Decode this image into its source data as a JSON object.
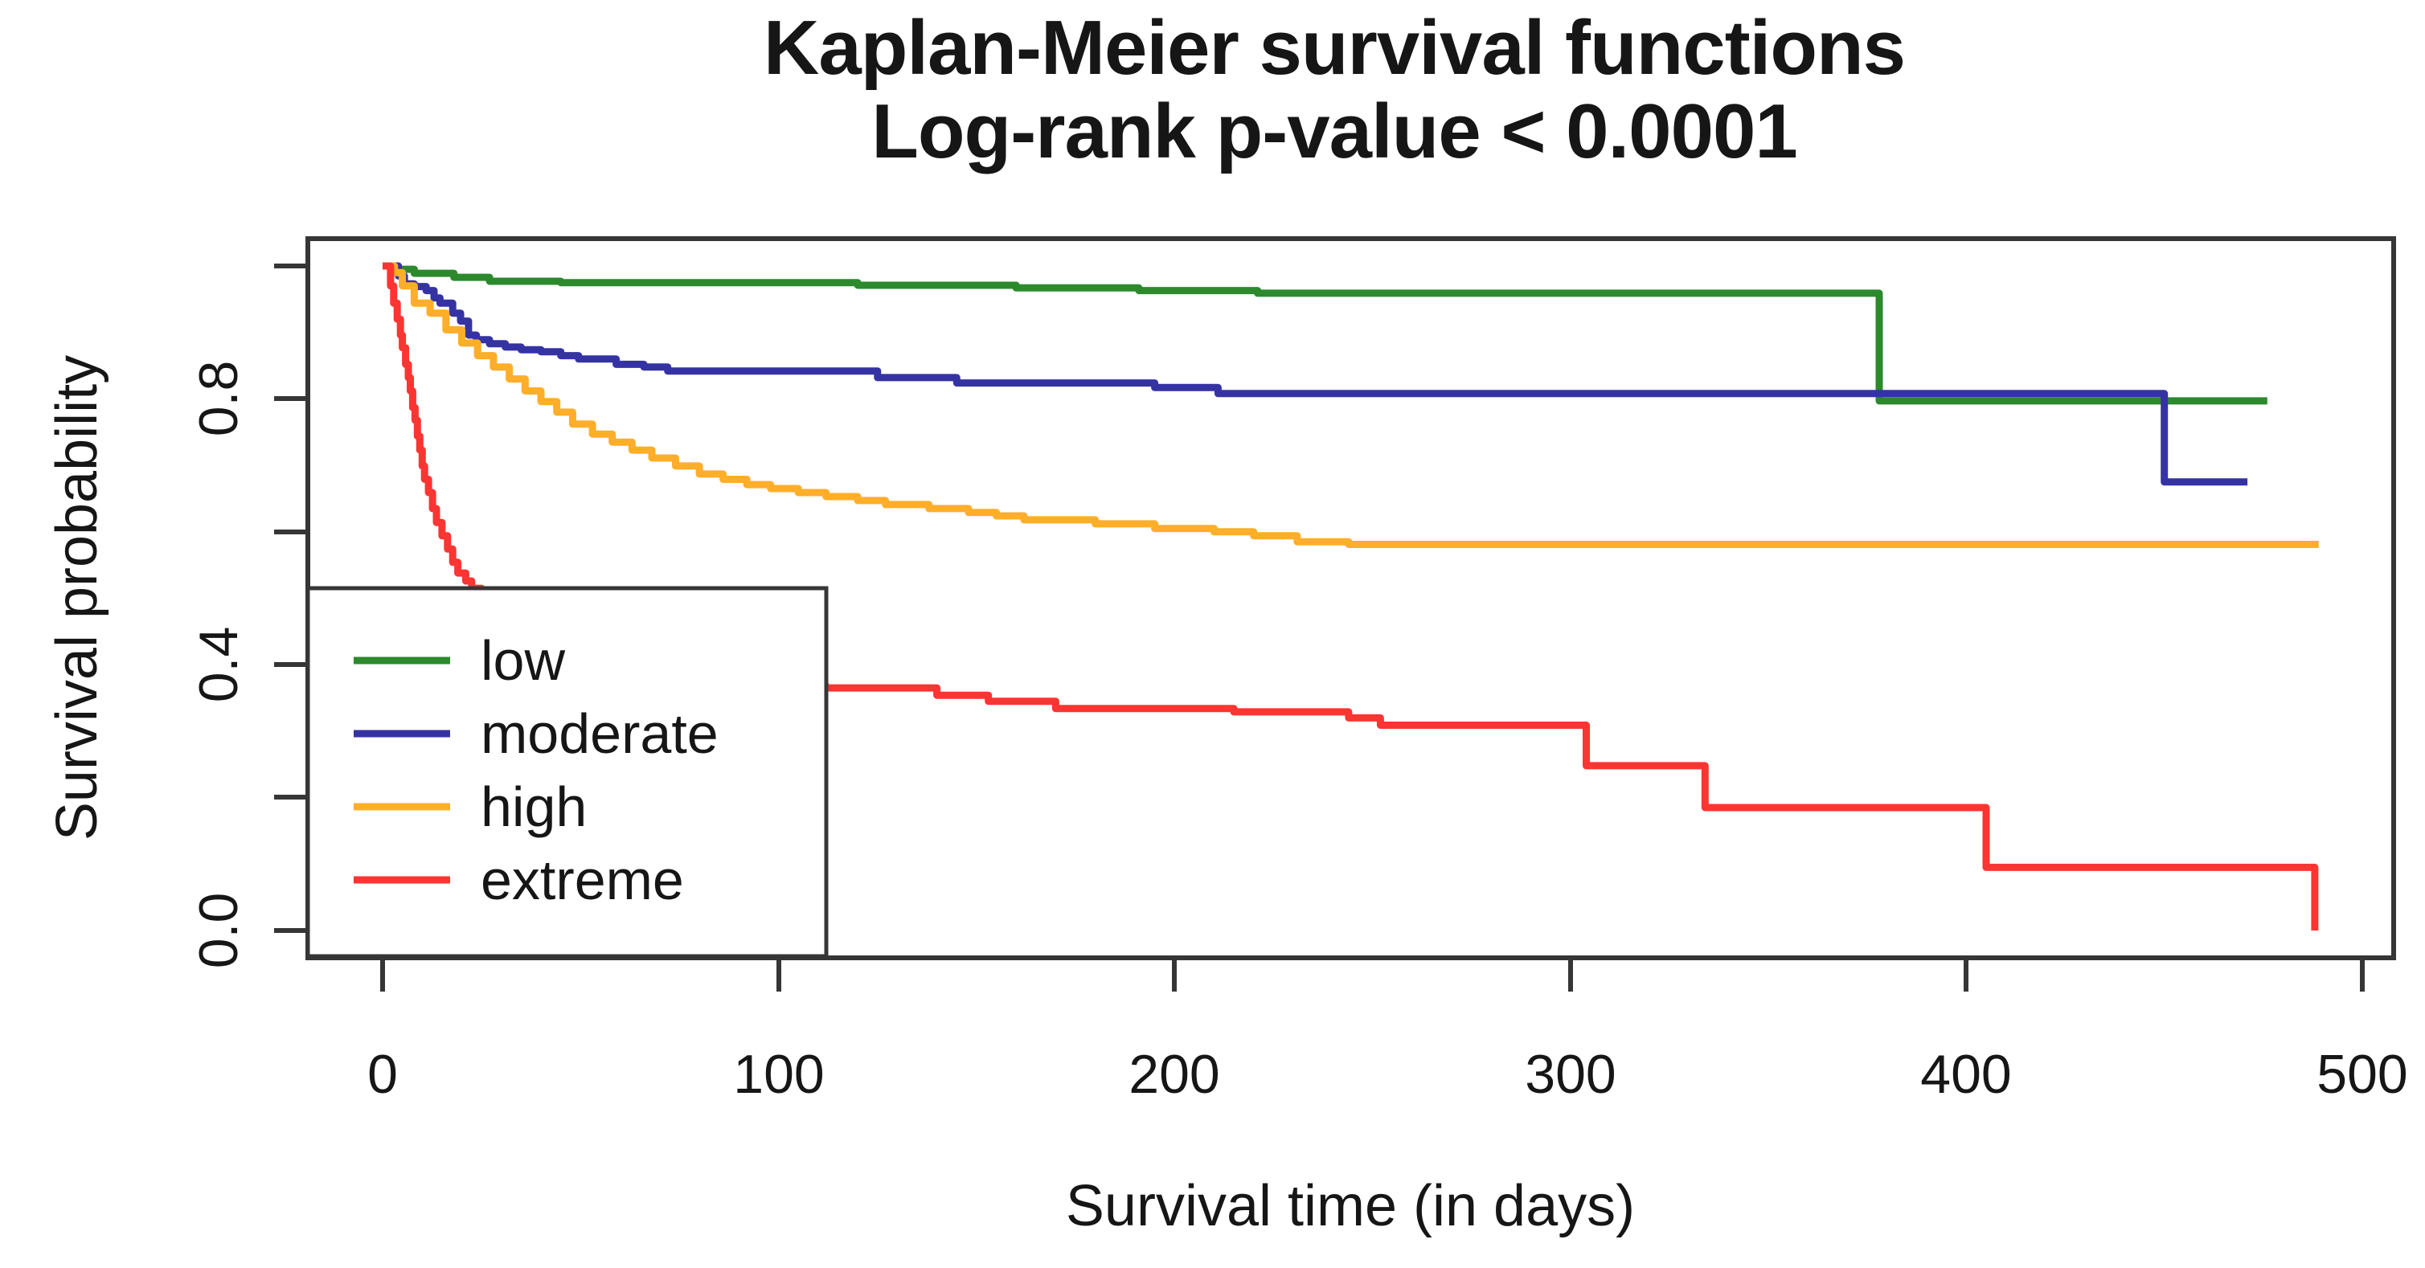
{
  "title": {
    "line1": "Kaplan-Meier survival functions",
    "line2": "Log-rank p-value < 0.0001"
  },
  "chart_data": {
    "type": "line",
    "subtype": "kaplan-meier-step",
    "title": "Kaplan-Meier survival functions",
    "subtitle": "Log-rank p-value < 0.0001",
    "xlabel": "Survival time (in days)",
    "ylabel": "Survival probability",
    "xlim": [
      0,
      500
    ],
    "ylim": [
      0,
      1
    ],
    "grid": false,
    "xaxis": {
      "ticks": [
        0,
        100,
        200,
        300,
        400,
        500
      ],
      "tick_labels": [
        "0",
        "100",
        "200",
        "300",
        "400",
        "500"
      ]
    },
    "yaxis": {
      "ticks": [
        0.0,
        0.2,
        0.4,
        0.6,
        0.8,
        1.0
      ],
      "shown_labels": [
        "0.8",
        "0.4",
        "0.0"
      ],
      "shown_label_values": [
        0.8,
        0.4,
        0.0
      ]
    },
    "legend": {
      "position": "bottom-left",
      "entries": [
        {
          "label": "low",
          "color": "#2C8A2C"
        },
        {
          "label": "moderate",
          "color": "#3533A3"
        },
        {
          "label": "high",
          "color": "#FFAE2A"
        },
        {
          "label": "extreme",
          "color": "#FB3532"
        }
      ]
    },
    "series": [
      {
        "name": "low",
        "color": "#2C8A2C",
        "points": [
          [
            0,
            1.0
          ],
          [
            3,
            0.995
          ],
          [
            8,
            0.989
          ],
          [
            18,
            0.983
          ],
          [
            27,
            0.977
          ],
          [
            45,
            0.975
          ],
          [
            120,
            0.971
          ],
          [
            160,
            0.967
          ],
          [
            191,
            0.963
          ],
          [
            221,
            0.959
          ],
          [
            378,
            0.797
          ],
          [
            476,
            0.797
          ]
        ]
      },
      {
        "name": "moderate",
        "color": "#3533A3",
        "points": [
          [
            0,
            1.0
          ],
          [
            4,
            0.985
          ],
          [
            5.5,
            0.973
          ],
          [
            8,
            0.969
          ],
          [
            11,
            0.963
          ],
          [
            13,
            0.952
          ],
          [
            14.5,
            0.944
          ],
          [
            17.7,
            0.929
          ],
          [
            19.7,
            0.917
          ],
          [
            21.7,
            0.896
          ],
          [
            23.7,
            0.889
          ],
          [
            27,
            0.883
          ],
          [
            31,
            0.878
          ],
          [
            35,
            0.874
          ],
          [
            40,
            0.871
          ],
          [
            45,
            0.865
          ],
          [
            49.5,
            0.86
          ],
          [
            59,
            0.852
          ],
          [
            66,
            0.848
          ],
          [
            72,
            0.842
          ],
          [
            125,
            0.832
          ],
          [
            145,
            0.824
          ],
          [
            195,
            0.817
          ],
          [
            211,
            0.808
          ],
          [
            450,
            0.675
          ],
          [
            471,
            0.675
          ]
        ]
      },
      {
        "name": "high",
        "color": "#FFAE2A",
        "points": [
          [
            0,
            1.0
          ],
          [
            3,
            0.99
          ],
          [
            5,
            0.97
          ],
          [
            8,
            0.944
          ],
          [
            12,
            0.929
          ],
          [
            16,
            0.904
          ],
          [
            20,
            0.884
          ],
          [
            24,
            0.865
          ],
          [
            28,
            0.848
          ],
          [
            32,
            0.83
          ],
          [
            36,
            0.812
          ],
          [
            40,
            0.796
          ],
          [
            44,
            0.78
          ],
          [
            48,
            0.762
          ],
          [
            53,
            0.747
          ],
          [
            58,
            0.735
          ],
          [
            63,
            0.723
          ],
          [
            68,
            0.711
          ],
          [
            74,
            0.699
          ],
          [
            80,
            0.687
          ],
          [
            86,
            0.679
          ],
          [
            92,
            0.671
          ],
          [
            98,
            0.665
          ],
          [
            105,
            0.659
          ],
          [
            112,
            0.653
          ],
          [
            120,
            0.647
          ],
          [
            127,
            0.641
          ],
          [
            138,
            0.635
          ],
          [
            148,
            0.629
          ],
          [
            155,
            0.624
          ],
          [
            162,
            0.618
          ],
          [
            180,
            0.612
          ],
          [
            195,
            0.605
          ],
          [
            210,
            0.6
          ],
          [
            220,
            0.594
          ],
          [
            231,
            0.585
          ],
          [
            244,
            0.581
          ],
          [
            489,
            0.581
          ]
        ]
      },
      {
        "name": "extreme",
        "color": "#FB3532",
        "points": [
          [
            0,
            1.0
          ],
          [
            2,
            0.97
          ],
          [
            2.8,
            0.944
          ],
          [
            3.7,
            0.92
          ],
          [
            4.5,
            0.896
          ],
          [
            5,
            0.877
          ],
          [
            5.8,
            0.852
          ],
          [
            6.5,
            0.832
          ],
          [
            7,
            0.812
          ],
          [
            7.6,
            0.787
          ],
          [
            8.2,
            0.768
          ],
          [
            8.8,
            0.744
          ],
          [
            9.4,
            0.723
          ],
          [
            10,
            0.699
          ],
          [
            10.6,
            0.679
          ],
          [
            11.6,
            0.659
          ],
          [
            12.6,
            0.635
          ],
          [
            13.6,
            0.614
          ],
          [
            15,
            0.594
          ],
          [
            16.4,
            0.574
          ],
          [
            17.7,
            0.554
          ],
          [
            19,
            0.538
          ],
          [
            21,
            0.526
          ],
          [
            22.5,
            0.515
          ],
          [
            25,
            0.5
          ],
          [
            28,
            0.485
          ],
          [
            32,
            0.47
          ],
          [
            37,
            0.455
          ],
          [
            43,
            0.44
          ],
          [
            50,
            0.425
          ],
          [
            58,
            0.41
          ],
          [
            67,
            0.395
          ],
          [
            77,
            0.383
          ],
          [
            88,
            0.374
          ],
          [
            100,
            0.368
          ],
          [
            112,
            0.365
          ],
          [
            140,
            0.354
          ],
          [
            153,
            0.345
          ],
          [
            170,
            0.334
          ],
          [
            215,
            0.329
          ],
          [
            244,
            0.32
          ],
          [
            252,
            0.309
          ],
          [
            304,
            0.248
          ],
          [
            334,
            0.185
          ],
          [
            405,
            0.095
          ],
          [
            488,
            0.095
          ],
          [
            488,
            0.0
          ]
        ]
      }
    ]
  },
  "colors": {
    "frame": "#363636",
    "text": "#161616",
    "background": "#ffffff"
  }
}
